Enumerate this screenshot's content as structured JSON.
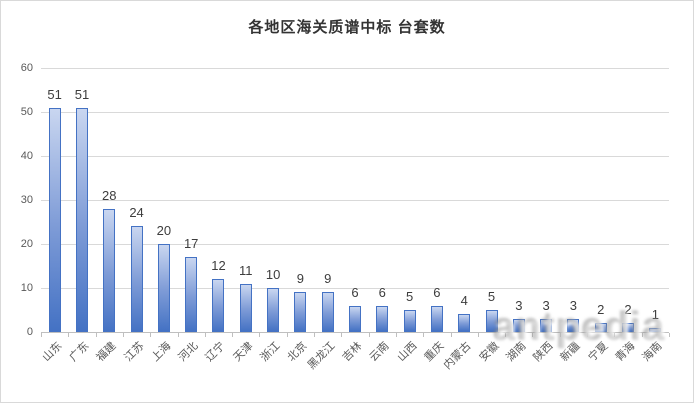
{
  "title": "各地区海关质谱中标 台套数",
  "watermark": "antpedia",
  "chart_data": {
    "type": "bar",
    "title": "各地区海关质谱中标 台套数",
    "categories": [
      "山东",
      "广东",
      "福建",
      "江苏",
      "上海",
      "河北",
      "辽宁",
      "天津",
      "浙江",
      "北京",
      "黑龙江",
      "吉林",
      "云南",
      "山西",
      "重庆",
      "内蒙古",
      "安徽",
      "湖南",
      "陕西",
      "新疆",
      "宁夏",
      "青海",
      "海南"
    ],
    "values": [
      51,
      51,
      28,
      24,
      20,
      17,
      12,
      11,
      10,
      9,
      9,
      6,
      6,
      5,
      6,
      4,
      5,
      3,
      3,
      3,
      2,
      2,
      1
    ],
    "xlabel": "",
    "ylabel": "",
    "ylim": [
      0,
      60
    ],
    "yticks": [
      0,
      10,
      20,
      30,
      40,
      50,
      60
    ],
    "grid": true,
    "legend": false,
    "data_labels": true,
    "x_label_rotation_deg": -45,
    "colors": {
      "bar_fill_top": "#c9d6f0",
      "bar_fill_bottom": "#4472c4",
      "bar_border": "#4472c4",
      "gridline": "#d9d9d9",
      "axis_line": "#bfbfbf",
      "tick_label": "#595959",
      "data_label": "#3d3d3d",
      "title": "#333333",
      "watermark": "#a0a0a0"
    }
  }
}
